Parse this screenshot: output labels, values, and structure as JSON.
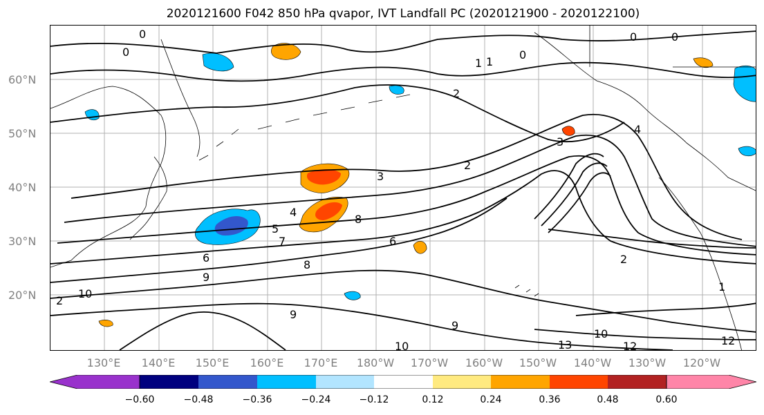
{
  "title": "2020121600 F042 850 hPa qvapor, IVT Landfall PC (2020121900 - 2020122100)",
  "map": {
    "lat_labels": [
      "60°N",
      "50°N",
      "40°N",
      "30°N",
      "20°N"
    ],
    "lon_labels": [
      "130°E",
      "140°E",
      "150°E",
      "160°E",
      "170°E",
      "180°W",
      "170°W",
      "160°W",
      "150°W",
      "140°W",
      "130°W",
      "120°W"
    ],
    "contour_labels": [
      "0",
      "0",
      "0",
      "0",
      "0",
      "1",
      "2",
      "2",
      "3",
      "3",
      "4",
      "5",
      "6",
      "7",
      "8",
      "9",
      "10",
      "10",
      "10",
      "12",
      "12",
      "13",
      "1",
      "1",
      "2",
      "2",
      "9",
      "9",
      "6",
      "8",
      "4"
    ]
  },
  "colorbar": {
    "colors": [
      "#9932cc",
      "#00007f",
      "#3357cc",
      "#00bfff",
      "#b2e5ff",
      "#ffffff",
      "#ffea80",
      "#ffa500",
      "#ff4500",
      "#b22222",
      "#ff85a8"
    ],
    "tick_labels": [
      "−0.60",
      "−0.48",
      "−0.36",
      "−0.24",
      "−0.12",
      "0.12",
      "0.24",
      "0.36",
      "0.48",
      "0.60"
    ]
  }
}
